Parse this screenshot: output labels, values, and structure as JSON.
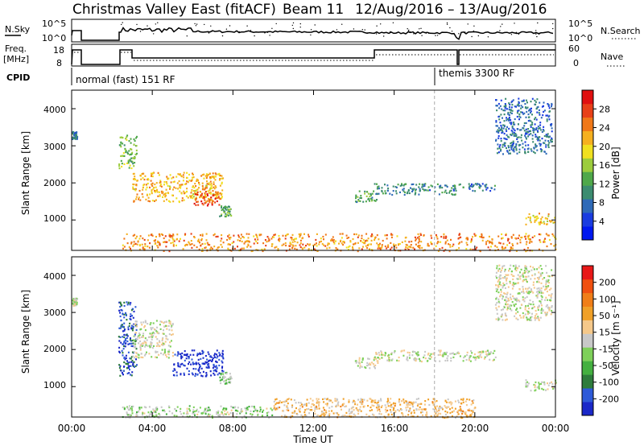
{
  "header": {
    "station": "Christmas Valley East (fitACF)",
    "beam": "Beam 11",
    "date_range": "12/Aug/2016 – 13/Aug/2016"
  },
  "nsky": {
    "label": "N.Sky",
    "ticks": [
      "10^5",
      "10^0"
    ],
    "right_ticks": [
      "10^5",
      "10^0"
    ],
    "right_label": "N.Search"
  },
  "freq": {
    "label_line1": "Freq.",
    "label_line2": "[MHz]",
    "ticks": [
      "18",
      "8"
    ],
    "right_ticks": [
      "60",
      "0"
    ],
    "right_label": "Nave"
  },
  "cpid": {
    "label": "CPID",
    "segments": [
      "normal (fast) 151 RF",
      "themis 3300 RF"
    ]
  },
  "x_axis": {
    "ticks": [
      "00:00",
      "04:00",
      "08:00",
      "12:00",
      "16:00",
      "20:00",
      "00:00"
    ],
    "label": "Time UT"
  },
  "panels": [
    {
      "ylabel": "Slant Range [km]",
      "yticks": [
        "1000",
        "2000",
        "3000",
        "4000"
      ],
      "colorbar_label": "Power [dB]",
      "colorbar_ticks": [
        "4",
        "8",
        "12",
        "16",
        "20",
        "24",
        "28"
      ],
      "colors": [
        "#0018f0",
        "#1a3ce0",
        "#2f6ab8",
        "#3c8c70",
        "#4fa84a",
        "#9ccc3c",
        "#f0e020",
        "#f5b020",
        "#f07818",
        "#e84018",
        "#e01010"
      ]
    },
    {
      "ylabel": "Slant Range [km]",
      "yticks": [
        "1000",
        "2000",
        "3000",
        "4000"
      ],
      "colorbar_label": "Velocity [m s⁻¹]",
      "colorbar_ticks": [
        "200",
        "100",
        "50",
        "15",
        "-15",
        "-50",
        "-100",
        "-200"
      ],
      "colors": [
        "#1a28c8",
        "#2e5ad8",
        "#2e7c3c",
        "#44b040",
        "#7ed05a",
        "#c8c8c8",
        "#f5c88a",
        "#f0a028",
        "#f07e18",
        "#f05010",
        "#e81818"
      ]
    }
  ],
  "chart_data": [
    {
      "type": "heatmap",
      "title": "Christmas Valley East (fitACF) Beam 11 12/Aug/2016 – 13/Aug/2016",
      "xlabel": "Time UT",
      "ylabel": "Slant Range [km]",
      "colorbar": "Power [dB]",
      "xlim_hours": [
        0,
        24
      ],
      "ylim_km": [
        180,
        4500
      ],
      "zlim": [
        0,
        30
      ],
      "regions": [
        {
          "t": [
            0.0,
            0.25
          ],
          "r": [
            3200,
            3400
          ],
          "v": 8
        },
        {
          "t": [
            2.3,
            3.2
          ],
          "r": [
            2400,
            3300
          ],
          "v": 14
        },
        {
          "t": [
            3.0,
            7.5
          ],
          "r": [
            1500,
            2300
          ],
          "v": 20
        },
        {
          "t": [
            6.0,
            7.3
          ],
          "r": [
            1400,
            1800
          ],
          "v": 26
        },
        {
          "t": [
            7.3,
            7.9
          ],
          "r": [
            1100,
            1400
          ],
          "v": 12
        },
        {
          "t": [
            2.5,
            24.0
          ],
          "r": [
            180,
            650
          ],
          "v": 22
        },
        {
          "t": [
            14.0,
            15.2
          ],
          "r": [
            1500,
            1800
          ],
          "v": 11
        },
        {
          "t": [
            15.0,
            19.0
          ],
          "r": [
            1700,
            2000
          ],
          "v": 9
        },
        {
          "t": [
            19.0,
            21.0
          ],
          "r": [
            1800,
            2000
          ],
          "v": 8
        },
        {
          "t": [
            21.0,
            23.8
          ],
          "r": [
            2800,
            4300
          ],
          "v": 7
        },
        {
          "t": [
            22.5,
            24.0
          ],
          "r": [
            900,
            1200
          ],
          "v": 19
        }
      ]
    },
    {
      "type": "heatmap",
      "title": "",
      "xlabel": "Time UT",
      "ylabel": "Slant Range [km]",
      "colorbar": "Velocity [m s⁻¹]",
      "xlim_hours": [
        0,
        24
      ],
      "ylim_km": [
        180,
        4500
      ],
      "zlim": [
        -250,
        250
      ],
      "regions": [
        {
          "t": [
            0.0,
            0.25
          ],
          "r": [
            3200,
            3400
          ],
          "v": 0
        },
        {
          "t": [
            2.3,
            3.2
          ],
          "r": [
            1300,
            3300
          ],
          "v": 180
        },
        {
          "t": [
            3.0,
            5.0
          ],
          "r": [
            1800,
            2800
          ],
          "v": 0
        },
        {
          "t": [
            5.0,
            7.5
          ],
          "r": [
            1300,
            2000
          ],
          "v": 230
        },
        {
          "t": [
            7.3,
            7.9
          ],
          "r": [
            1100,
            1400
          ],
          "v": 40
        },
        {
          "t": [
            2.5,
            10.0
          ],
          "r": [
            180,
            500
          ],
          "v": 30
        },
        {
          "t": [
            10.0,
            20.0
          ],
          "r": [
            180,
            700
          ],
          "v": -60
        },
        {
          "t": [
            14.0,
            15.2
          ],
          "r": [
            1500,
            1800
          ],
          "v": 0
        },
        {
          "t": [
            15.0,
            21.0
          ],
          "r": [
            1700,
            2000
          ],
          "v": 0
        },
        {
          "t": [
            21.0,
            23.8
          ],
          "r": [
            2800,
            4300
          ],
          "v": 0
        },
        {
          "t": [
            22.5,
            24.0
          ],
          "r": [
            900,
            1200
          ],
          "v": 0
        }
      ]
    }
  ]
}
